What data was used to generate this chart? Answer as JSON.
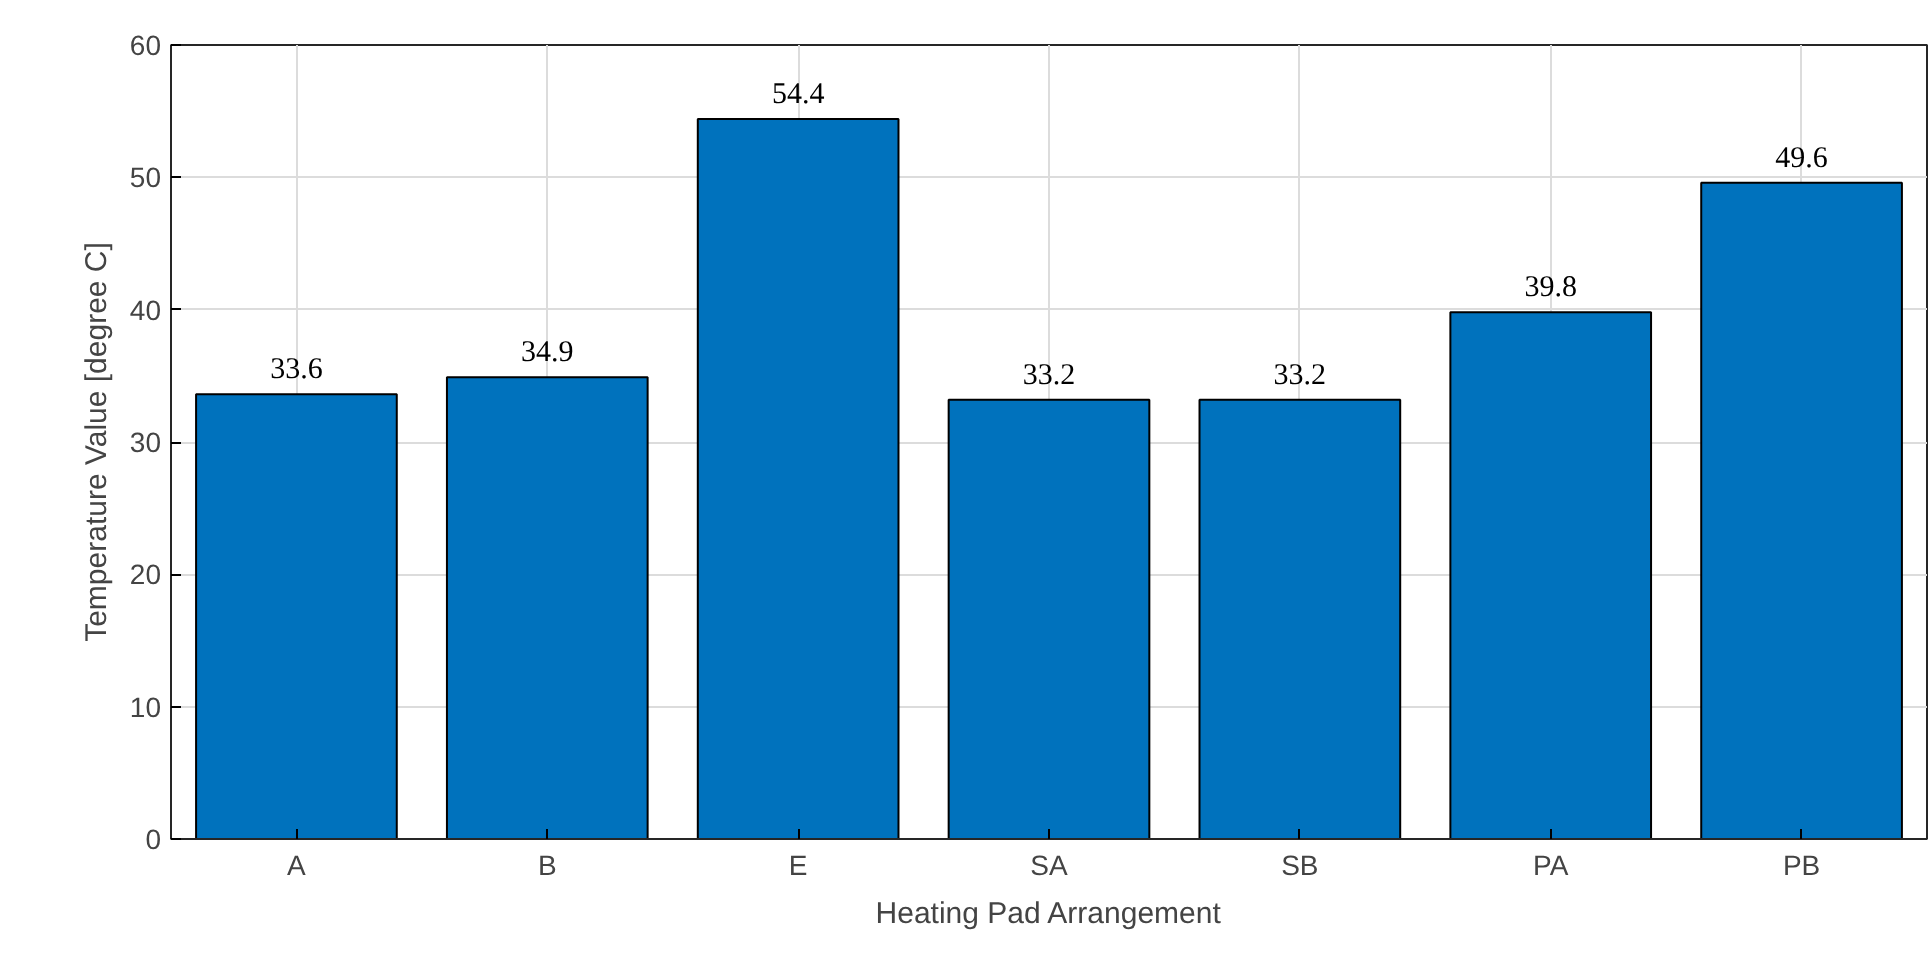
{
  "chart_data": {
    "type": "bar",
    "xlabel": "Heating Pad Arrangement",
    "ylabel": "Temperature Value [degree C]",
    "categories": [
      "A",
      "B",
      "E",
      "SA",
      "SB",
      "PA",
      "PB"
    ],
    "values": [
      33.6,
      34.9,
      54.4,
      33.2,
      33.2,
      39.8,
      49.6
    ],
    "color": "#0072bd",
    "ylim": [
      0,
      60
    ],
    "yticks": [
      0,
      10,
      20,
      30,
      40,
      50,
      60
    ],
    "grid": true,
    "data_labels": true
  }
}
